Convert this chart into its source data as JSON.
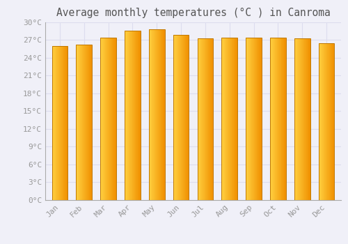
{
  "title": "Average monthly temperatures (°C ) in Canroma",
  "months": [
    "Jan",
    "Feb",
    "Mar",
    "Apr",
    "May",
    "Jun",
    "Jul",
    "Aug",
    "Sep",
    "Oct",
    "Nov",
    "Dec"
  ],
  "values": [
    26.0,
    26.2,
    27.3,
    28.5,
    28.8,
    27.8,
    27.2,
    27.3,
    27.3,
    27.3,
    27.2,
    26.4
  ],
  "bar_color_left": "#FFD040",
  "bar_color_right": "#F09000",
  "bar_edge_color": "#C07800",
  "background_color": "#F0F0F8",
  "plot_bg_color": "#F0F0F8",
  "grid_color": "#DDDDEE",
  "tick_label_color": "#999999",
  "title_color": "#555555",
  "ylim": [
    0,
    30
  ],
  "yticks": [
    0,
    3,
    6,
    9,
    12,
    15,
    18,
    21,
    24,
    27,
    30
  ],
  "ytick_labels": [
    "0°C",
    "3°C",
    "6°C",
    "9°C",
    "12°C",
    "15°C",
    "18°C",
    "21°C",
    "24°C",
    "27°C",
    "30°C"
  ],
  "font_family": "monospace",
  "title_fontsize": 10.5,
  "tick_fontsize": 8
}
